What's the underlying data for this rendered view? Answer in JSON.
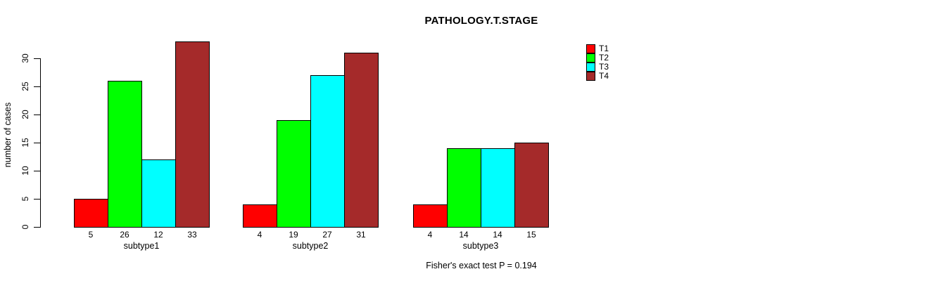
{
  "chart_data": {
    "type": "bar",
    "title": "PATHOLOGY.T.STAGE",
    "ylabel": "number of cases",
    "xlabel": "",
    "categories": [
      "subtype1",
      "subtype2",
      "subtype3"
    ],
    "series": [
      {
        "name": "T1",
        "color": "#FF0000",
        "values": [
          5,
          4,
          4
        ]
      },
      {
        "name": "T2",
        "color": "#00FF00",
        "values": [
          26,
          19,
          14
        ]
      },
      {
        "name": "T3",
        "color": "#00FFFF",
        "values": [
          12,
          27,
          14
        ]
      },
      {
        "name": "T4",
        "color": "#A52A2A",
        "values": [
          33,
          31,
          15
        ]
      }
    ],
    "yticks": [
      0,
      5,
      10,
      15,
      20,
      25,
      30
    ],
    "ylim": [
      0,
      33
    ],
    "grid": false,
    "bar_value_labels_shown": true,
    "legend_position": "top-right",
    "annotation": "Fisher's exact test P = 0.194"
  }
}
